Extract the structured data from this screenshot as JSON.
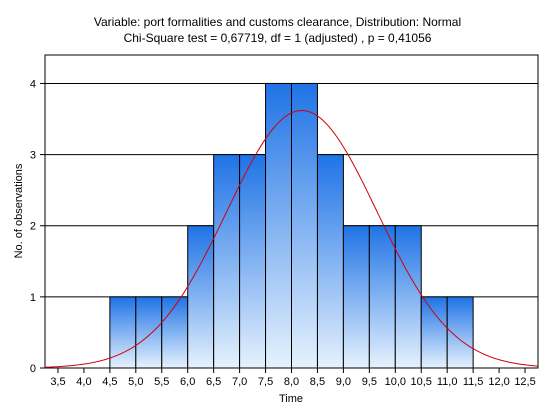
{
  "chart_data": {
    "type": "bar",
    "title": "Variable: port formalities and customs clearance, Distribution: Normal",
    "subtitle": "Chi-Square test = 0,67719, df = 1 (adjusted) , p = 0,41056",
    "xlabel": "Time",
    "ylabel": "No. of observations",
    "xlim": [
      3.25,
      12.75
    ],
    "ylim": [
      0,
      4.4
    ],
    "x_ticks": [
      "3,5",
      "4,0",
      "4,5",
      "5,0",
      "5,5",
      "6,0",
      "6,5",
      "7,0",
      "7,5",
      "8,0",
      "8,5",
      "9,0",
      "9,5",
      "10,0",
      "10,5",
      "11,0",
      "11,5",
      "12,0",
      "12,5"
    ],
    "x_tick_values": [
      3.5,
      4.0,
      4.5,
      5.0,
      5.5,
      6.0,
      6.5,
      7.0,
      7.5,
      8.0,
      8.5,
      9.0,
      9.5,
      10.0,
      10.5,
      11.0,
      11.5,
      12.0,
      12.5
    ],
    "y_ticks": [
      "0",
      "1",
      "2",
      "3",
      "4"
    ],
    "y_tick_values": [
      0,
      1,
      2,
      3,
      4
    ],
    "bins": [
      {
        "start": 4.5,
        "end": 5.0,
        "count": 1
      },
      {
        "start": 5.0,
        "end": 5.5,
        "count": 1
      },
      {
        "start": 5.5,
        "end": 6.0,
        "count": 1
      },
      {
        "start": 6.0,
        "end": 6.5,
        "count": 2
      },
      {
        "start": 6.5,
        "end": 7.0,
        "count": 3
      },
      {
        "start": 7.0,
        "end": 7.5,
        "count": 3
      },
      {
        "start": 7.5,
        "end": 8.0,
        "count": 4
      },
      {
        "start": 8.0,
        "end": 8.5,
        "count": 4
      },
      {
        "start": 8.5,
        "end": 9.0,
        "count": 3
      },
      {
        "start": 9.0,
        "end": 9.5,
        "count": 2
      },
      {
        "start": 9.5,
        "end": 10.0,
        "count": 2
      },
      {
        "start": 10.0,
        "end": 10.5,
        "count": 2
      },
      {
        "start": 10.5,
        "end": 11.0,
        "count": 1
      },
      {
        "start": 11.0,
        "end": 11.5,
        "count": 1
      }
    ],
    "normal_fit": {
      "mean": 8.2,
      "peak": 3.62,
      "sd": 1.45
    },
    "grid": "y-major",
    "colors": {
      "bar_top": "#1f73e6",
      "bar_bottom": "#e6f2fd",
      "bar_edge": "#000000",
      "curve": "#d0000e",
      "grid": "#000000"
    }
  }
}
